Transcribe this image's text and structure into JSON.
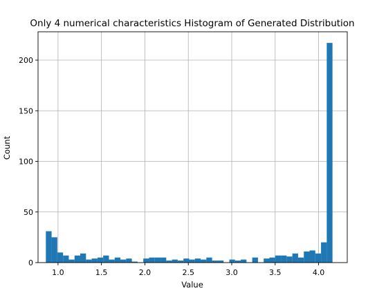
{
  "chart_data": {
    "type": "bar",
    "title": "Only 4 numerical characteristics Histogram of Generated Distribution",
    "xlabel": "Value",
    "ylabel": "Count",
    "xlim": [
      0.77,
      4.33
    ],
    "ylim": [
      0,
      228
    ],
    "x_ticks": [
      1.0,
      1.5,
      2.0,
      2.5,
      3.0,
      3.5,
      4.0
    ],
    "x_tick_labels": [
      "1.0",
      "1.5",
      "2.0",
      "2.5",
      "3.0",
      "3.5",
      "4.0"
    ],
    "y_ticks": [
      0,
      50,
      100,
      150,
      200
    ],
    "y_tick_labels": [
      "0",
      "50",
      "100",
      "150",
      "200"
    ],
    "grid": true,
    "bar_color": "#1f77b4",
    "bin_start": 0.86,
    "bin_width": 0.066,
    "values": [
      31,
      25,
      10,
      7,
      3,
      7,
      9,
      3,
      4,
      5,
      7,
      3,
      5,
      3,
      4,
      1,
      0,
      4,
      5,
      5,
      5,
      2,
      3,
      2,
      4,
      3,
      4,
      3,
      5,
      2,
      2,
      0,
      3,
      2,
      3,
      0,
      5,
      0,
      4,
      5,
      7,
      7,
      6,
      9,
      5,
      11,
      12,
      9,
      20,
      217
    ]
  }
}
